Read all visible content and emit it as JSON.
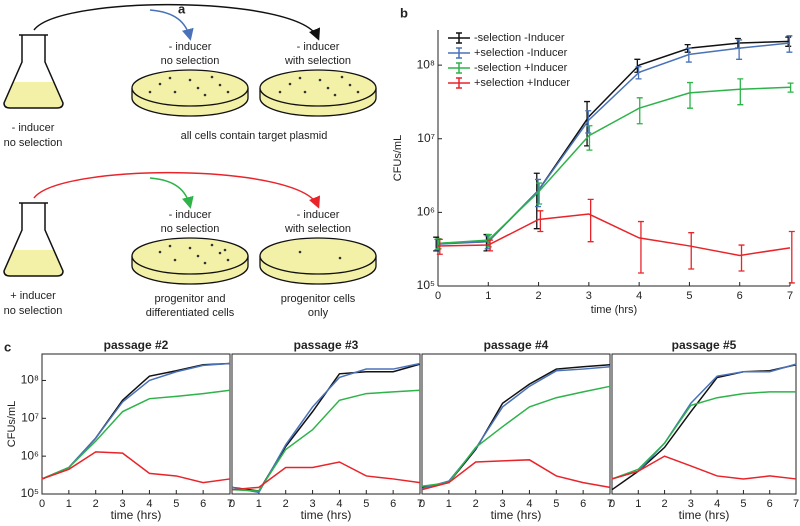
{
  "panel_labels": [
    "a",
    "b",
    "c"
  ],
  "panel_a": {
    "top": {
      "flask_label": [
        "- inducer",
        "no selection"
      ],
      "plates": [
        {
          "label": [
            "- inducer",
            "no selection"
          ]
        },
        {
          "label": [
            "- inducer",
            "with selection"
          ]
        }
      ],
      "caption": "all cells contain target plasmid"
    },
    "bottom": {
      "flask_label": [
        "+ inducer",
        "no selection"
      ],
      "plates": [
        {
          "label": [
            "- inducer",
            "no selection"
          ],
          "caption": [
            "progenitor  and",
            "differentiated cells"
          ]
        },
        {
          "label": [
            "- inducer",
            "with selection"
          ],
          "caption": [
            "progenitor cells",
            "only"
          ]
        }
      ]
    }
  },
  "chart_data": [
    {
      "type": "line",
      "ylabel": "CFUs/mL",
      "xlabel": "time (hrs)",
      "log_y": true,
      "legend": "upper left",
      "x": [
        0,
        1,
        2,
        3,
        4,
        5,
        6,
        7
      ],
      "xlim": [
        0,
        7
      ],
      "xticks": [
        0,
        1,
        2,
        3,
        4,
        5,
        6,
        7
      ],
      "ylim": [
        100000,
        300000000
      ],
      "yticks": [
        {
          "value": 100000,
          "label": "10⁵"
        },
        {
          "value": 1000000,
          "label": "10⁶"
        },
        {
          "value": 10000000,
          "label": "10⁷"
        },
        {
          "value": 100000000,
          "label": "10⁸"
        }
      ],
      "series": [
        {
          "name": "-selection -Inducer",
          "color": "#111111",
          "values": [
            380000,
            400000,
            2000000,
            20000000,
            100000000,
            170000000,
            200000000,
            210000000
          ],
          "errors": [
            80000,
            100000,
            1400000,
            12000000,
            20000000,
            20000000,
            30000000,
            30000000
          ]
        },
        {
          "name": "+selection -Inducer",
          "color": "#4a72b8",
          "values": [
            370000,
            400000,
            2000000,
            18000000,
            80000000,
            140000000,
            170000000,
            200000000
          ],
          "errors": [
            60000,
            80000,
            800000,
            6000000,
            15000000,
            30000000,
            50000000,
            50000000
          ]
        },
        {
          "name": "-selection +Inducer",
          "color": "#2db34a",
          "values": [
            380000,
            420000,
            1900000,
            11000000,
            26000000,
            42000000,
            47000000,
            50000000
          ],
          "errors": [
            60000,
            80000,
            600000,
            4000000,
            10000000,
            16000000,
            18000000,
            7000000
          ]
        },
        {
          "name": "+selection +Inducer",
          "color": "#e8242a",
          "values": [
            350000,
            360000,
            800000,
            950000,
            450000,
            350000,
            260000,
            330000
          ],
          "errors": [
            80000,
            60000,
            250000,
            550000,
            300000,
            180000,
            100000,
            220000
          ]
        }
      ]
    },
    {
      "type": "line",
      "title": "passage #2",
      "ylabel": "CFUs/mL",
      "xlabel": "time (hrs)",
      "log_y": true,
      "x": [
        0,
        1,
        2,
        3,
        4,
        5,
        6,
        7
      ],
      "xlim": [
        0,
        7
      ],
      "xticks": [
        0,
        1,
        2,
        3,
        4,
        5,
        6,
        7
      ],
      "ylim": [
        100000,
        500000000
      ],
      "yticks": [
        {
          "value": 100000,
          "label": "10⁵"
        },
        {
          "value": 1000000,
          "label": "10⁶"
        },
        {
          "value": 10000000,
          "label": "10⁷"
        },
        {
          "value": 100000000,
          "label": "10⁸"
        }
      ],
      "series": [
        {
          "color": "#111111",
          "values": [
            250000,
            500000,
            3000000,
            30000000,
            130000000,
            180000000,
            260000000,
            280000000
          ]
        },
        {
          "color": "#4a72b8",
          "values": [
            250000,
            500000,
            3000000,
            27000000,
            100000000,
            170000000,
            250000000,
            280000000
          ]
        },
        {
          "color": "#2db34a",
          "values": [
            250000,
            500000,
            2500000,
            15000000,
            33000000,
            38000000,
            45000000,
            55000000
          ]
        },
        {
          "color": "#e8242a",
          "values": [
            250000,
            450000,
            1300000,
            1200000,
            350000,
            300000,
            200000,
            250000
          ]
        }
      ]
    },
    {
      "type": "line",
      "title": "passage #3",
      "xlabel": "time (hrs)",
      "log_y": true,
      "x": [
        0,
        1,
        2,
        3,
        4,
        5,
        6,
        7
      ],
      "xlim": [
        0,
        7
      ],
      "xticks": [
        0,
        1,
        2,
        3,
        4,
        5,
        6,
        7
      ],
      "ylim": [
        100000,
        500000000
      ],
      "series": [
        {
          "color": "#111111",
          "values": [
            150000,
            120000,
            1800000,
            15000000,
            150000000,
            170000000,
            170000000,
            270000000
          ]
        },
        {
          "color": "#4a72b8",
          "values": [
            150000,
            110000,
            2000000,
            20000000,
            120000000,
            200000000,
            200000000,
            280000000
          ]
        },
        {
          "color": "#2db34a",
          "values": [
            130000,
            120000,
            1500000,
            5000000,
            30000000,
            45000000,
            50000000,
            55000000
          ]
        },
        {
          "color": "#e8242a",
          "values": [
            130000,
            150000,
            500000,
            500000,
            700000,
            300000,
            250000,
            200000
          ]
        }
      ]
    },
    {
      "type": "line",
      "title": "passage #4",
      "xlabel": "time (hrs)",
      "log_y": true,
      "x": [
        0,
        1,
        2,
        3,
        4,
        5,
        6,
        7
      ],
      "xlim": [
        0,
        7
      ],
      "xticks": [
        0,
        1,
        2,
        3,
        4,
        5,
        6,
        7
      ],
      "ylim": [
        100000,
        500000000
      ],
      "series": [
        {
          "color": "#111111",
          "values": [
            150000,
            200000,
            1500000,
            25000000,
            80000000,
            200000000,
            230000000,
            260000000
          ]
        },
        {
          "color": "#4a72b8",
          "values": [
            140000,
            220000,
            1600000,
            20000000,
            70000000,
            180000000,
            200000000,
            230000000
          ]
        },
        {
          "color": "#2db34a",
          "values": [
            160000,
            200000,
            1700000,
            6000000,
            20000000,
            35000000,
            50000000,
            70000000
          ]
        },
        {
          "color": "#e8242a",
          "values": [
            130000,
            200000,
            700000,
            750000,
            800000,
            300000,
            200000,
            150000
          ]
        }
      ]
    },
    {
      "type": "line",
      "title": "passage #5",
      "xlabel": "time (hrs)",
      "log_y": true,
      "x": [
        0,
        1,
        2,
        3,
        4,
        5,
        6,
        7
      ],
      "xlim": [
        0,
        7
      ],
      "xticks": [
        0,
        1,
        2,
        3,
        4,
        5,
        6,
        7
      ],
      "ylim": [
        100000,
        500000000
      ],
      "series": [
        {
          "color": "#111111",
          "values": [
            130000,
            400000,
            1700000,
            15000000,
            120000000,
            170000000,
            180000000,
            260000000
          ]
        },
        {
          "color": "#4a72b8",
          "values": [
            250000,
            400000,
            2200000,
            25000000,
            130000000,
            170000000,
            170000000,
            270000000
          ]
        },
        {
          "color": "#2db34a",
          "values": [
            250000,
            450000,
            2200000,
            22000000,
            35000000,
            45000000,
            50000000,
            50000000
          ]
        },
        {
          "color": "#e8242a",
          "values": [
            250000,
            400000,
            1000000,
            550000,
            300000,
            250000,
            300000,
            250000
          ]
        }
      ]
    }
  ]
}
